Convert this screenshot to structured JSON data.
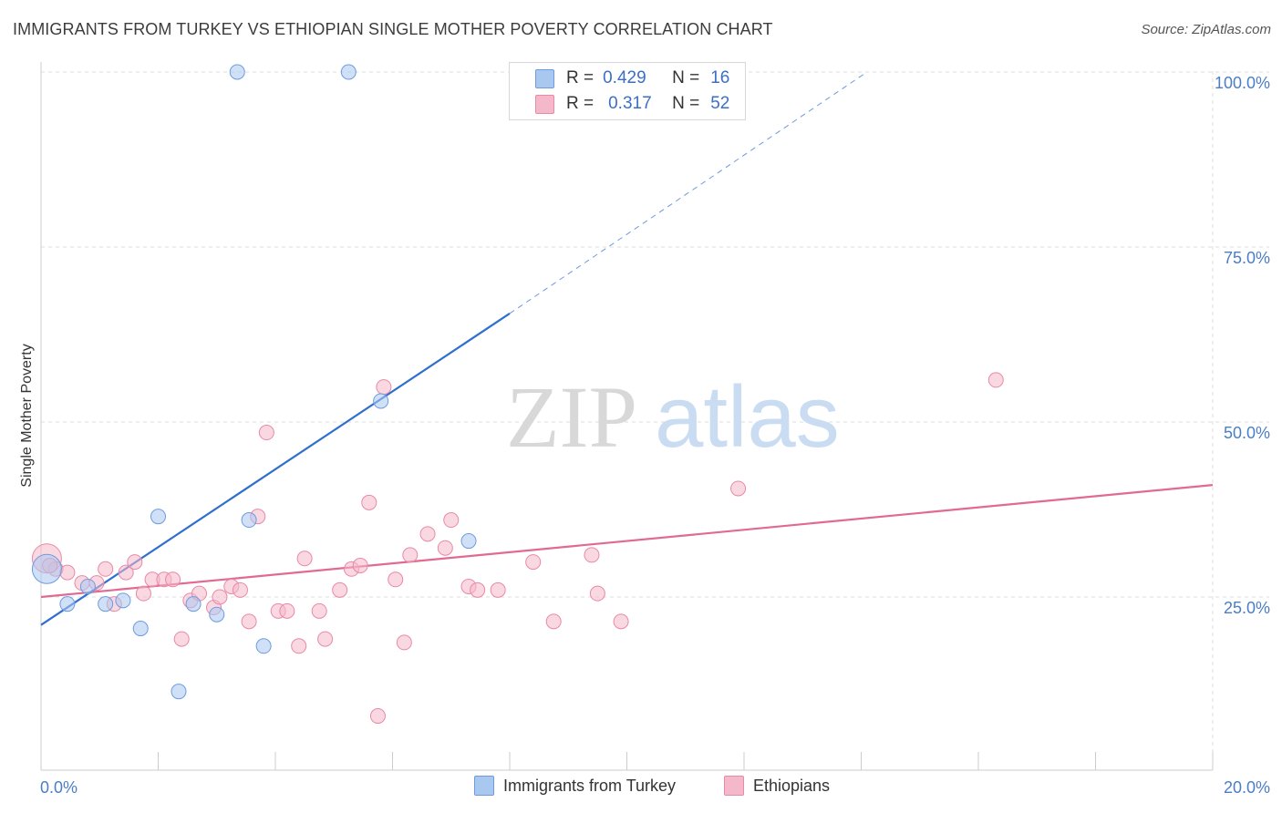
{
  "header": {
    "title": "IMMIGRANTS FROM TURKEY VS ETHIOPIAN SINGLE MOTHER POVERTY CORRELATION CHART",
    "source": "Source: ZipAtlas.com"
  },
  "watermark": {
    "zip": "ZIP",
    "atlas": "atlas"
  },
  "legend": {
    "rows": [
      {
        "r_label": "R =",
        "r_value": "0.429",
        "n_label": "N =",
        "n_value": "16",
        "color": "#a9c8f0"
      },
      {
        "r_label": "R =",
        "r_value": "0.317",
        "n_label": "N =",
        "n_value": "52",
        "color": "#f5b8cb"
      }
    ]
  },
  "bottom_legend": {
    "series1": "Immigrants from Turkey",
    "series2": "Ethiopians"
  },
  "colors": {
    "blue_fill": "#a9c8f0",
    "blue_stroke": "#6d9be0",
    "blue_line": "#2f6fce",
    "pink_fill": "#f5b8cb",
    "pink_stroke": "#e889a6",
    "pink_line": "#e06a92",
    "tick_text": "#4a7ec8",
    "grid": "#dddddd"
  },
  "chart_data": {
    "type": "scatter",
    "xlabel": "",
    "ylabel": "Single Mother Poverty",
    "xlim": [
      0,
      20
    ],
    "ylim": [
      0,
      102
    ],
    "x_tick_labels": [
      {
        "value": 0,
        "label": "0.0%"
      },
      {
        "value": 20,
        "label": "20.0%"
      }
    ],
    "y_tick_labels": [
      {
        "value": 25,
        "label": "25.0%"
      },
      {
        "value": 50,
        "label": "50.0%"
      },
      {
        "value": 75,
        "label": "75.0%"
      },
      {
        "value": 100,
        "label": "100.0%"
      }
    ],
    "grid": true,
    "legend_position": "top-center",
    "series": [
      {
        "name": "Immigrants from Turkey",
        "color": "#a9c8f0",
        "points": [
          [
            0.1,
            29.0
          ],
          [
            0.45,
            24.0
          ],
          [
            0.8,
            26.5
          ],
          [
            1.1,
            24.0
          ],
          [
            1.4,
            24.5
          ],
          [
            1.7,
            20.5
          ],
          [
            2.0,
            36.5
          ],
          [
            2.35,
            11.5
          ],
          [
            2.6,
            24.0
          ],
          [
            3.0,
            22.5
          ],
          [
            3.35,
            100.0
          ],
          [
            3.55,
            36.0
          ],
          [
            3.8,
            18.0
          ],
          [
            5.25,
            100.0
          ],
          [
            5.8,
            53.0
          ],
          [
            7.3,
            33.0
          ]
        ],
        "trend": {
          "x": [
            0,
            8.0
          ],
          "y": [
            21.0,
            65.5
          ],
          "dashed_to": [
            14.1,
            100.0
          ]
        }
      },
      {
        "name": "Ethiopians",
        "color": "#f5b8cb",
        "points": [
          [
            0.1,
            30.5
          ],
          [
            0.25,
            29.0
          ],
          [
            0.45,
            28.5
          ],
          [
            0.7,
            27.0
          ],
          [
            0.95,
            27.0
          ],
          [
            1.1,
            29.0
          ],
          [
            1.25,
            24.0
          ],
          [
            1.45,
            28.5
          ],
          [
            1.6,
            30.0
          ],
          [
            1.75,
            25.5
          ],
          [
            1.9,
            27.5
          ],
          [
            2.1,
            27.5
          ],
          [
            2.25,
            27.5
          ],
          [
            2.4,
            19.0
          ],
          [
            2.55,
            24.5
          ],
          [
            2.7,
            25.5
          ],
          [
            2.95,
            23.5
          ],
          [
            3.05,
            25.0
          ],
          [
            3.25,
            26.5
          ],
          [
            3.4,
            26.0
          ],
          [
            3.55,
            21.5
          ],
          [
            3.7,
            36.5
          ],
          [
            3.85,
            48.5
          ],
          [
            4.05,
            23.0
          ],
          [
            4.2,
            23.0
          ],
          [
            4.4,
            18.0
          ],
          [
            4.5,
            30.5
          ],
          [
            4.75,
            23.0
          ],
          [
            4.85,
            19.0
          ],
          [
            5.1,
            26.0
          ],
          [
            5.3,
            29.0
          ],
          [
            5.45,
            29.5
          ],
          [
            5.6,
            38.5
          ],
          [
            5.75,
            8.0
          ],
          [
            5.85,
            55.0
          ],
          [
            6.05,
            27.5
          ],
          [
            6.2,
            18.5
          ],
          [
            6.3,
            31.0
          ],
          [
            6.6,
            34.0
          ],
          [
            6.9,
            32.0
          ],
          [
            7.0,
            36.0
          ],
          [
            7.3,
            26.5
          ],
          [
            7.45,
            26.0
          ],
          [
            7.8,
            26.0
          ],
          [
            8.4,
            30.0
          ],
          [
            8.75,
            21.5
          ],
          [
            9.4,
            31.0
          ],
          [
            9.5,
            25.5
          ],
          [
            9.9,
            21.5
          ],
          [
            11.9,
            40.5
          ],
          [
            16.3,
            56.0
          ],
          [
            0.15,
            29.5
          ]
        ],
        "trend": {
          "x": [
            0,
            20.0
          ],
          "y": [
            25.0,
            41.0
          ]
        }
      }
    ]
  }
}
